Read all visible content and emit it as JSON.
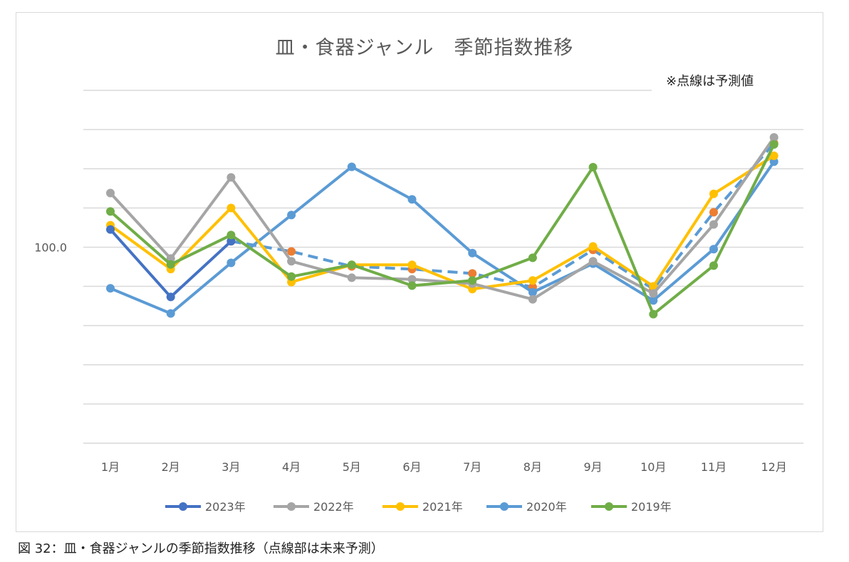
{
  "chart_data": {
    "type": "line",
    "title": "皿・食器ジャンル　季節指数推移",
    "note": "※点線は予測値",
    "caption": "図 32：皿・食器ジャンルの季節指数推移（点線部は未来予測）",
    "xlabel": "",
    "ylabel": "",
    "categories": [
      "1月",
      "2月",
      "3月",
      "4月",
      "5月",
      "6月",
      "7月",
      "8月",
      "9月",
      "10月",
      "11月",
      "12月"
    ],
    "ylim": [
      50,
      140
    ],
    "y_tick_labels": [
      {
        "value": 100,
        "label": "100.0"
      }
    ],
    "grid": true,
    "legend": "bottom",
    "series": [
      {
        "name": "2023年",
        "color": "#4472C4",
        "values": [
          104.5,
          87.3,
          101.5,
          null,
          null,
          null,
          null,
          null,
          null,
          null,
          null,
          null
        ]
      },
      {
        "name": "2022年",
        "color": "#A5A5A5",
        "values": [
          113.8,
          97.1,
          117.8,
          96.4,
          92.2,
          91.8,
          90.7,
          86.7,
          96.4,
          88.2,
          105.8,
          128.0
        ]
      },
      {
        "name": "2021年",
        "color": "#FFC000",
        "values": [
          105.6,
          94.4,
          110.0,
          91.1,
          95.5,
          95.5,
          89.3,
          91.5,
          100.2,
          90.0,
          113.6,
          123.3
        ]
      },
      {
        "name": "2020年",
        "color": "#5B9BD5",
        "values": [
          89.5,
          83.1,
          96.0,
          108.2,
          120.5,
          112.2,
          98.5,
          88.5,
          95.8,
          86.4,
          99.5,
          121.8
        ]
      },
      {
        "name": "2019年",
        "color": "#70AD47",
        "values": [
          109.1,
          95.6,
          103.1,
          92.5,
          95.5,
          90.2,
          91.5,
          97.3,
          120.4,
          82.9,
          95.3,
          126.2
        ]
      }
    ],
    "forecast": {
      "line_color": "#5B9BD5",
      "marker_color": "#ED7D31",
      "dashed": true,
      "values": [
        null,
        null,
        101.5,
        98.9,
        95.1,
        94.4,
        93.3,
        89.8,
        99.3,
        89.3,
        108.9,
        126.5
      ]
    }
  }
}
